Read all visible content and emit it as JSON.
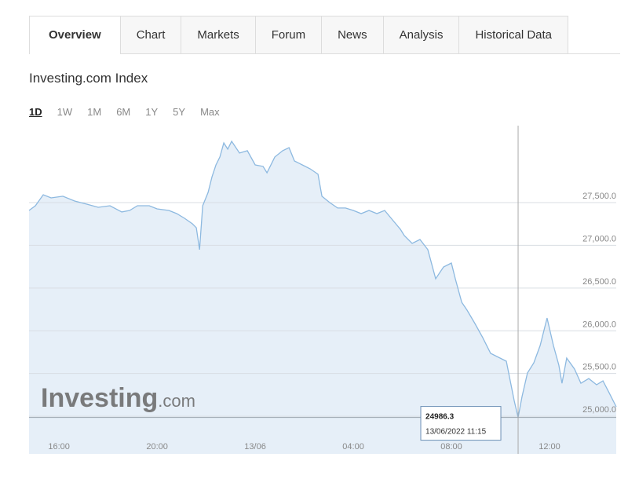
{
  "tabs": [
    "Overview",
    "Chart",
    "Markets",
    "Forum",
    "News",
    "Analysis",
    "Historical Data"
  ],
  "title": "Investing.com Index",
  "ranges": [
    "1D",
    "1W",
    "1M",
    "6M",
    "1Y",
    "5Y",
    "Max"
  ],
  "watermark": {
    "brand": "Investing",
    "suffix": ".com"
  },
  "chart_data": {
    "type": "area",
    "color": "#8db9e0",
    "x": [
      14.78,
      15.04,
      15.36,
      15.68,
      16.16,
      16.64,
      17.12,
      17.6,
      18.08,
      18.56,
      18.88,
      19.2,
      19.68,
      20,
      20.48,
      20.8,
      21.12,
      21.44,
      21.6,
      21.73,
      21.86,
      22.08,
      22.24,
      22.4,
      22.56,
      22.72,
      22.88,
      23.04,
      23.36,
      23.68,
      24,
      24.32,
      24.48,
      24.8,
      25.12,
      25.38,
      25.6,
      25.92,
      26.24,
      26.56,
      26.72,
      27.04,
      27.36,
      27.68,
      28,
      28.32,
      28.64,
      28.96,
      29.28,
      29.6,
      29.92,
      30.08,
      30.4,
      30.72,
      31.04,
      31.36,
      31.68,
      32,
      32.16,
      32.42,
      32.64,
      32.96,
      33.28,
      33.6,
      33.92,
      34.24,
      34.56,
      34.72,
      34.88,
      35.1,
      35.36,
      35.62,
      35.9,
      36.16,
      36.38,
      36.51,
      36.7,
      37.02,
      37.28,
      37.6,
      37.92,
      38.18,
      38.43,
      38.72
    ],
    "values": [
      27408,
      27463,
      27592,
      27555,
      27574,
      27518,
      27482,
      27445,
      27463,
      27390,
      27408,
      27463,
      27463,
      27426,
      27408,
      27371,
      27316,
      27252,
      27206,
      26949,
      27463,
      27619,
      27803,
      27941,
      28033,
      28198,
      28125,
      28217,
      28079,
      28107,
      27941,
      27923,
      27849,
      28033,
      28107,
      28143,
      27987,
      27941,
      27895,
      27831,
      27574,
      27500,
      27436,
      27436,
      27408,
      27371,
      27408,
      27371,
      27408,
      27298,
      27188,
      27114,
      27022,
      27068,
      26949,
      26609,
      26746,
      26792,
      26609,
      26333,
      26241,
      26085,
      25919,
      25736,
      25690,
      25644,
      25184,
      24986.3,
      25230,
      25506,
      25625,
      25828,
      26149,
      25828,
      25598,
      25386,
      25681,
      25552,
      25386,
      25441,
      25368,
      25414,
      25276,
      25111
    ],
    "xlim": [
      14.78,
      38.72
    ],
    "xticks": [
      {
        "value": 16,
        "label": "16:00"
      },
      {
        "value": 20,
        "label": "20:00"
      },
      {
        "value": 24,
        "label": "13/06"
      },
      {
        "value": 28,
        "label": "04:00"
      },
      {
        "value": 32,
        "label": "08:00"
      },
      {
        "value": 36,
        "label": "12:00"
      }
    ],
    "ylim": [
      24560,
      28400
    ],
    "yticks": [
      {
        "value": 25000,
        "label": "25,000.0"
      },
      {
        "value": 25500,
        "label": "25,500.0"
      },
      {
        "value": 26000,
        "label": "26,000.0"
      },
      {
        "value": 26500,
        "label": "26,500.0"
      },
      {
        "value": 27000,
        "label": "27,000.0"
      },
      {
        "value": 27500,
        "label": "27,500.0"
      }
    ],
    "grid": true,
    "tooltip": {
      "value": 24986.3,
      "date": "13/06/2022 11:15"
    }
  }
}
